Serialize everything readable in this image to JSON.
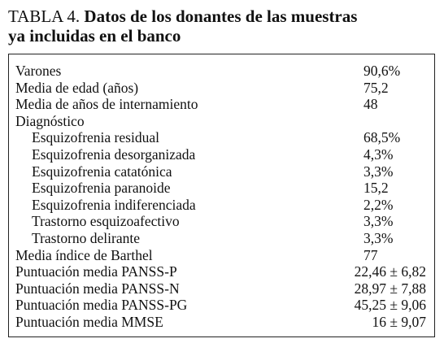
{
  "title": {
    "label": "TABLA 4.",
    "lines": [
      "Datos de los donantes de las muestras",
      "ya incluidas en el banco"
    ]
  },
  "table": {
    "rows": [
      {
        "label": "Varones",
        "value": "90,6%"
      },
      {
        "label": "Media de edad (años)",
        "value": "75,2"
      },
      {
        "label": "Media de años de internamiento",
        "value": "48"
      },
      {
        "label": "Diagnóstico",
        "children": [
          {
            "label": "Esquizofrenia residual",
            "value": "68,5%"
          },
          {
            "label": "Esquizofrenia desorganizada",
            "value": "4,3%"
          },
          {
            "label": "Esquizofrenia catatónica",
            "value": "3,3%"
          },
          {
            "label": "Esquizofrenia paranoide",
            "value": "15,2"
          },
          {
            "label": "Esquizofrenia indiferenciada",
            "value": "2,2%"
          },
          {
            "label": "Trastorno esquizoafectivo",
            "value": "3,3%"
          },
          {
            "label": "Trastorno delirante",
            "value": "3,3%"
          }
        ]
      },
      {
        "label": "Media índice de Barthel",
        "value": "77"
      },
      {
        "label": "Puntuación media PANSS-P",
        "value": "22,46 ± 6,82"
      },
      {
        "label": "Puntuación media PANSS-N",
        "value": "28,97 ± 7,88"
      },
      {
        "label": "Puntuación media PANSS-PG",
        "value": "45,25 ± 9,06"
      },
      {
        "label": "Puntuación media MMSE",
        "value": "16 ± 9,07"
      }
    ]
  }
}
